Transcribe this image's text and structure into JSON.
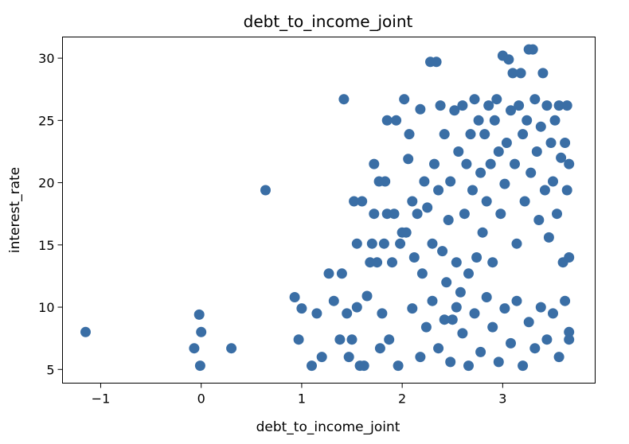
{
  "chart_data": {
    "type": "scatter",
    "title": "debt_to_income_joint",
    "xlabel": "debt_to_income_joint",
    "ylabel": "interest_rate",
    "xlim": [
      -1.38,
      3.92
    ],
    "ylim": [
      3.9,
      31.7
    ],
    "xticks": [
      -1,
      0,
      1,
      2,
      3
    ],
    "xtick_labels": [
      "−1",
      "0",
      "1",
      "2",
      "3"
    ],
    "yticks": [
      5,
      10,
      15,
      20,
      25,
      30
    ],
    "ytick_labels": [
      "5",
      "10",
      "15",
      "20",
      "25",
      "30"
    ],
    "grid": false,
    "color": "#3a6ea5",
    "series": [
      {
        "points": [
          [
            -1.15,
            8.0
          ],
          [
            -0.07,
            6.7
          ],
          [
            -0.02,
            9.4
          ],
          [
            0.0,
            8.0
          ],
          [
            -0.01,
            5.3
          ],
          [
            0.3,
            6.7
          ],
          [
            0.64,
            19.4
          ],
          [
            0.93,
            10.8
          ],
          [
            0.97,
            7.4
          ],
          [
            1.0,
            9.9
          ],
          [
            1.1,
            5.3
          ],
          [
            1.15,
            9.5
          ],
          [
            1.2,
            6.0
          ],
          [
            1.27,
            12.7
          ],
          [
            1.32,
            10.5
          ],
          [
            1.38,
            7.4
          ],
          [
            1.4,
            12.7
          ],
          [
            1.42,
            26.7
          ],
          [
            1.45,
            9.5
          ],
          [
            1.47,
            6.0
          ],
          [
            1.5,
            7.4
          ],
          [
            1.52,
            18.5
          ],
          [
            1.55,
            10.0
          ],
          [
            1.55,
            15.1
          ],
          [
            1.58,
            5.3
          ],
          [
            1.6,
            18.5
          ],
          [
            1.62,
            5.3
          ],
          [
            1.65,
            10.9
          ],
          [
            1.68,
            13.6
          ],
          [
            1.7,
            15.1
          ],
          [
            1.72,
            21.5
          ],
          [
            1.72,
            17.5
          ],
          [
            1.75,
            13.6
          ],
          [
            1.77,
            20.1
          ],
          [
            1.78,
            6.7
          ],
          [
            1.8,
            9.5
          ],
          [
            1.82,
            15.1
          ],
          [
            1.83,
            20.1
          ],
          [
            1.85,
            25.0
          ],
          [
            1.85,
            17.5
          ],
          [
            1.87,
            7.4
          ],
          [
            1.9,
            13.6
          ],
          [
            1.92,
            17.5
          ],
          [
            1.94,
            25.0
          ],
          [
            1.96,
            5.3
          ],
          [
            1.98,
            15.1
          ],
          [
            2.0,
            16.0
          ],
          [
            2.02,
            26.7
          ],
          [
            2.04,
            16.0
          ],
          [
            2.06,
            21.9
          ],
          [
            2.07,
            23.9
          ],
          [
            2.1,
            18.5
          ],
          [
            2.12,
            14.0
          ],
          [
            2.15,
            17.5
          ],
          [
            2.18,
            25.9
          ],
          [
            2.2,
            12.7
          ],
          [
            2.22,
            20.1
          ],
          [
            2.25,
            18.0
          ],
          [
            2.28,
            29.7
          ],
          [
            2.3,
            15.1
          ],
          [
            2.32,
            21.5
          ],
          [
            2.34,
            29.7
          ],
          [
            2.36,
            19.4
          ],
          [
            2.38,
            26.2
          ],
          [
            2.4,
            14.5
          ],
          [
            2.42,
            23.9
          ],
          [
            2.44,
            12.0
          ],
          [
            2.46,
            17.0
          ],
          [
            2.48,
            20.1
          ],
          [
            2.5,
            9.0
          ],
          [
            2.52,
            25.8
          ],
          [
            2.54,
            13.6
          ],
          [
            2.56,
            22.5
          ],
          [
            2.58,
            11.2
          ],
          [
            2.6,
            26.2
          ],
          [
            2.62,
            17.5
          ],
          [
            2.64,
            21.5
          ],
          [
            2.66,
            12.7
          ],
          [
            2.68,
            23.9
          ],
          [
            2.7,
            19.4
          ],
          [
            2.72,
            26.7
          ],
          [
            2.74,
            14.0
          ],
          [
            2.76,
            25.0
          ],
          [
            2.78,
            20.8
          ],
          [
            2.8,
            16.0
          ],
          [
            2.82,
            23.9
          ],
          [
            2.84,
            18.5
          ],
          [
            2.86,
            26.2
          ],
          [
            2.88,
            21.5
          ],
          [
            2.9,
            13.6
          ],
          [
            2.92,
            25.0
          ],
          [
            2.94,
            26.7
          ],
          [
            2.96,
            22.5
          ],
          [
            2.98,
            17.5
          ],
          [
            3.0,
            30.2
          ],
          [
            3.02,
            19.9
          ],
          [
            3.04,
            23.2
          ],
          [
            3.06,
            29.9
          ],
          [
            3.08,
            25.8
          ],
          [
            3.1,
            28.8
          ],
          [
            3.12,
            21.5
          ],
          [
            3.14,
            15.1
          ],
          [
            3.16,
            26.2
          ],
          [
            3.18,
            28.8
          ],
          [
            3.2,
            23.9
          ],
          [
            3.22,
            18.5
          ],
          [
            3.24,
            25.0
          ],
          [
            3.26,
            30.7
          ],
          [
            3.28,
            20.8
          ],
          [
            3.3,
            30.7
          ],
          [
            3.32,
            26.7
          ],
          [
            3.34,
            22.5
          ],
          [
            3.36,
            17.0
          ],
          [
            3.38,
            24.5
          ],
          [
            3.4,
            28.8
          ],
          [
            3.42,
            19.4
          ],
          [
            3.44,
            26.2
          ],
          [
            3.46,
            15.6
          ],
          [
            3.48,
            23.2
          ],
          [
            3.5,
            20.1
          ],
          [
            3.52,
            25.0
          ],
          [
            3.54,
            17.5
          ],
          [
            3.56,
            26.2
          ],
          [
            3.58,
            22.0
          ],
          [
            3.6,
            13.6
          ],
          [
            3.62,
            23.2
          ],
          [
            3.64,
            26.2
          ],
          [
            3.64,
            19.4
          ],
          [
            3.66,
            21.5
          ],
          [
            3.66,
            14.0
          ],
          [
            3.66,
            7.4
          ],
          [
            2.1,
            9.9
          ],
          [
            2.18,
            6.0
          ],
          [
            2.24,
            8.4
          ],
          [
            2.3,
            10.5
          ],
          [
            2.36,
            6.7
          ],
          [
            2.42,
            9.0
          ],
          [
            2.48,
            5.6
          ],
          [
            2.54,
            10.0
          ],
          [
            2.6,
            7.9
          ],
          [
            2.66,
            5.3
          ],
          [
            2.72,
            9.5
          ],
          [
            2.78,
            6.4
          ],
          [
            2.84,
            10.8
          ],
          [
            2.9,
            8.4
          ],
          [
            2.96,
            5.6
          ],
          [
            3.02,
            9.9
          ],
          [
            3.08,
            7.1
          ],
          [
            3.14,
            10.5
          ],
          [
            3.2,
            5.3
          ],
          [
            3.26,
            8.8
          ],
          [
            3.32,
            6.7
          ],
          [
            3.38,
            10.0
          ],
          [
            3.44,
            7.4
          ],
          [
            3.5,
            9.5
          ],
          [
            3.56,
            6.0
          ],
          [
            3.62,
            10.5
          ],
          [
            3.66,
            8.0
          ]
        ]
      }
    ]
  }
}
